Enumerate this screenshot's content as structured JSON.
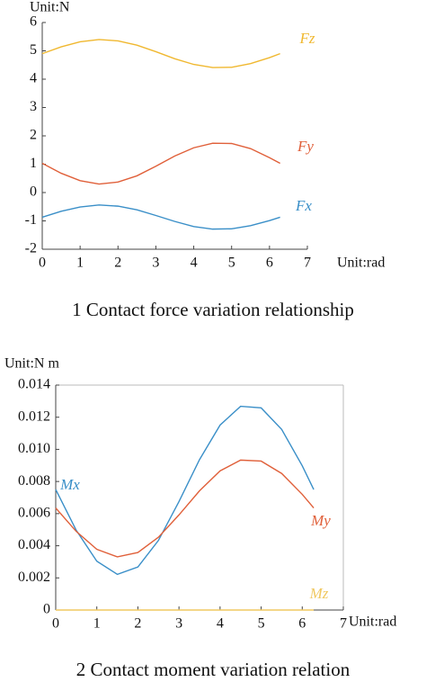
{
  "chart_data": [
    {
      "type": "line",
      "title": "1 Contact force variation relationship",
      "y_unit": "Unit:N",
      "x_unit": "Unit:rad",
      "x": [
        0,
        0.5,
        1,
        1.5,
        2,
        2.5,
        3,
        3.5,
        4,
        4.5,
        5,
        5.5,
        6,
        6.28
      ],
      "series": [
        {
          "name": "Fz",
          "color": "#f0b830",
          "values": [
            4.9,
            5.14,
            5.32,
            5.4,
            5.35,
            5.2,
            4.97,
            4.72,
            4.52,
            4.41,
            4.42,
            4.55,
            4.76,
            4.9
          ]
        },
        {
          "name": "Fy",
          "color": "#e0603a",
          "values": [
            1.03,
            0.68,
            0.42,
            0.3,
            0.37,
            0.59,
            0.93,
            1.29,
            1.58,
            1.74,
            1.73,
            1.55,
            1.23,
            1.03
          ]
        },
        {
          "name": "Fx",
          "color": "#3a8fc8",
          "values": [
            -0.87,
            -0.66,
            -0.51,
            -0.44,
            -0.48,
            -0.61,
            -0.81,
            -1.02,
            -1.2,
            -1.29,
            -1.28,
            -1.17,
            -0.99,
            -0.87
          ]
        }
      ],
      "xlim": [
        0,
        7
      ],
      "xticks": [
        0,
        1,
        2,
        3,
        4,
        5,
        6,
        7
      ],
      "ylim": [
        -2,
        6
      ],
      "yticks": [
        -2,
        -1,
        0,
        1,
        2,
        3,
        4,
        5,
        6
      ],
      "frame": false
    },
    {
      "type": "line",
      "title": "2 Contact moment variation relation",
      "y_unit": "Unit:N m",
      "x_unit": "Unit:rad",
      "x": [
        0,
        0.5,
        1,
        1.5,
        2,
        2.5,
        3,
        3.5,
        4,
        4.5,
        5,
        5.5,
        6,
        6.28
      ],
      "series": [
        {
          "name": "Mx",
          "color": "#3a8fc8",
          "values": [
            0.0075,
            0.00496,
            0.00304,
            0.00222,
            0.00268,
            0.00433,
            0.00675,
            0.00936,
            0.01151,
            0.01268,
            0.01258,
            0.01124,
            0.00898,
            0.0075
          ]
        },
        {
          "name": "My",
          "color": "#e0603a",
          "values": [
            0.00635,
            0.00489,
            0.00378,
            0.00331,
            0.00358,
            0.00453,
            0.00592,
            0.00742,
            0.00866,
            0.00933,
            0.00927,
            0.0085,
            0.0072,
            0.00635
          ]
        },
        {
          "name": "Mz",
          "color": "#f0c860",
          "values": [
            0,
            0,
            0,
            0,
            0,
            0,
            0,
            0,
            0,
            0,
            0,
            0,
            0,
            0
          ]
        }
      ],
      "xlim": [
        0,
        7
      ],
      "xticks": [
        0,
        1,
        2,
        3,
        4,
        5,
        6,
        7
      ],
      "ylim": [
        0,
        0.014
      ],
      "yticks": [
        0,
        0.002,
        0.004,
        0.006,
        0.008,
        {
          "value": 0.01,
          "label": "0.010"
        },
        0.012,
        0.014
      ],
      "frame": true
    }
  ]
}
